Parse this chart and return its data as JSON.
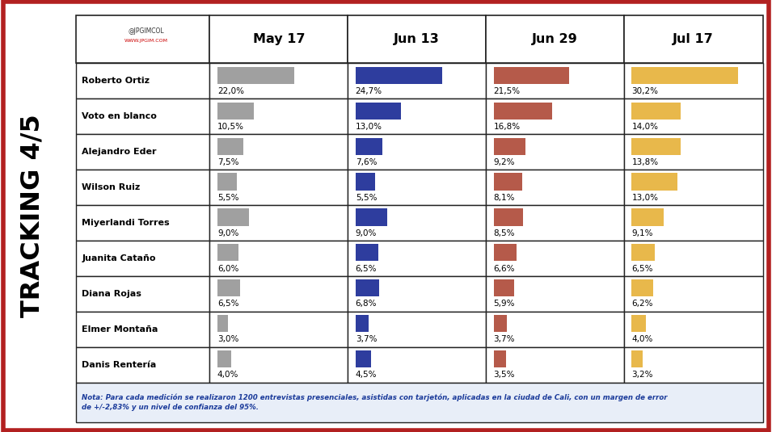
{
  "candidates": [
    "Roberto Ortiz",
    "Voto en blanco",
    "Alejandro Eder",
    "Wilson Ruiz",
    "Miyerlandi Torres",
    "Juanita Cataño",
    "Diana Rojas",
    "Elmer Montaña",
    "Danis Rentería"
  ],
  "columns": [
    "May 17",
    "Jun 13",
    "Jun 29",
    "Jul 17"
  ],
  "values": [
    [
      22.0,
      24.7,
      21.5,
      30.2
    ],
    [
      10.5,
      13.0,
      16.8,
      14.0
    ],
    [
      7.5,
      7.6,
      9.2,
      13.8
    ],
    [
      5.5,
      5.5,
      8.1,
      13.0
    ],
    [
      9.0,
      9.0,
      8.5,
      9.1
    ],
    [
      6.0,
      6.5,
      6.6,
      6.5
    ],
    [
      6.5,
      6.8,
      5.9,
      6.2
    ],
    [
      3.0,
      3.7,
      3.7,
      4.0
    ],
    [
      4.0,
      4.5,
      3.5,
      3.2
    ]
  ],
  "bar_colors": [
    "#a0a0a0",
    "#2e3d9e",
    "#b55a4a",
    "#e8b84b"
  ],
  "border_color": "#222222",
  "note_text": "Nota: Para cada medición se realizaron 1200 entrevistas presenciales, asistidas con tarjetón, aplicadas en la ciudad de Cali, con un margen de error\nde +/-2,83% y un nivel de confianza del 95%.",
  "tracking_label": "TRACKING 4/5",
  "outer_border_color": "#b22020",
  "note_bg": "#e8eef8",
  "note_text_color": "#1a3a9a",
  "max_bar_value": 35,
  "fig_width": 9.55,
  "fig_height": 5.35,
  "dpi": 100
}
